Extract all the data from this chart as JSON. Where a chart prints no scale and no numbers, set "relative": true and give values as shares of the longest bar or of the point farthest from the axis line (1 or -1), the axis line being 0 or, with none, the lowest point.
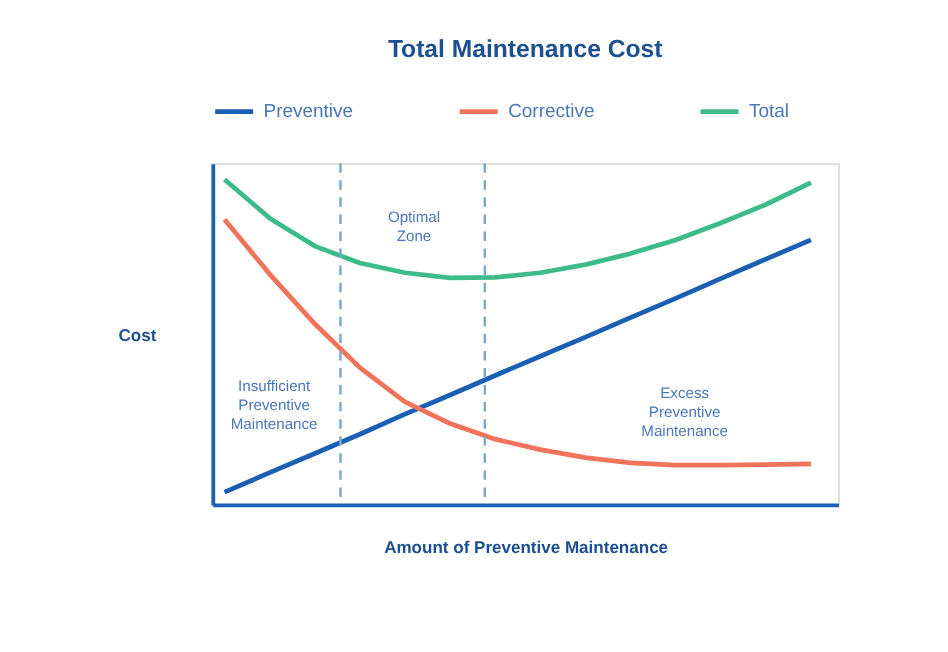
{
  "chart_data": {
    "type": "line",
    "title": "Total Maintenance Cost",
    "xlabel": "Amount of Preventive Maintenance",
    "ylabel": "Cost",
    "relative": true,
    "legend": "top",
    "marker": "none",
    "line_style": "solid",
    "tick_labels": false,
    "categories": [
      null,
      null,
      null,
      null,
      null,
      null,
      null,
      null,
      null,
      null,
      null,
      null,
      null,
      null
    ],
    "series": [
      {
        "name": "Preventive",
        "color": "#1a5fb4",
        "values": [
          0.038,
          0.098,
          0.157,
          0.216,
          0.278,
          0.337,
          0.397,
          0.456,
          0.515,
          0.575,
          0.634,
          0.695,
          0.755,
          0.814
        ]
      },
      {
        "name": "Corrective",
        "color": "#f0735a",
        "values": [
          0.877,
          0.709,
          0.556,
          0.421,
          0.316,
          0.249,
          0.201,
          0.169,
          0.144,
          0.128,
          0.121,
          0.121,
          0.123,
          0.125
        ]
      },
      {
        "name": "Total",
        "color": "#3dbb8a",
        "values": [
          1,
          0.881,
          0.795,
          0.743,
          0.713,
          0.697,
          0.699,
          0.713,
          0.738,
          0.772,
          0.814,
          0.866,
          0.923,
          0.99
        ]
      }
    ],
    "annotations": [
      "Insufficient Preventive Maintenance",
      "Optimal Zone",
      "Excess Preventive Maintenance"
    ]
  }
}
